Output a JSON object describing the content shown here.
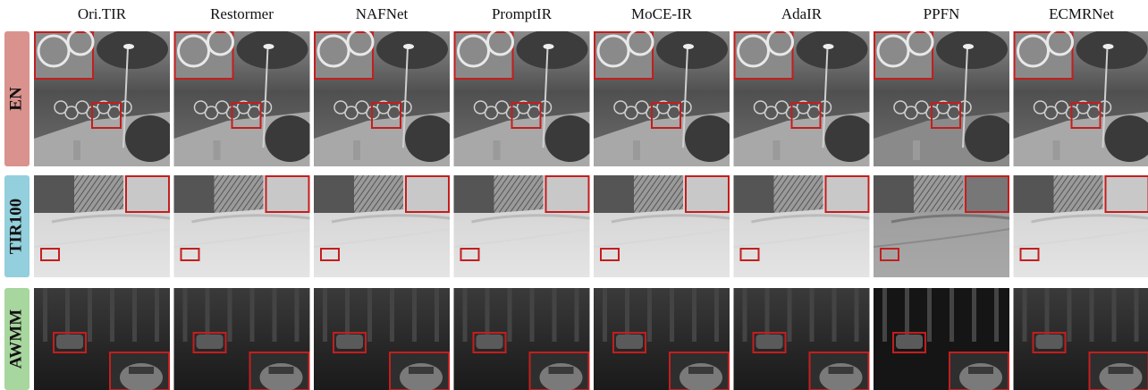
{
  "columns": [
    "Ori.TIR",
    "Restormer",
    "NAFNet",
    "PromptIR",
    "MoCE-IR",
    "AdaIR",
    "PPFN",
    "ECMRNet"
  ],
  "rows": [
    "EN",
    "TIR100",
    "AWMM"
  ]
}
